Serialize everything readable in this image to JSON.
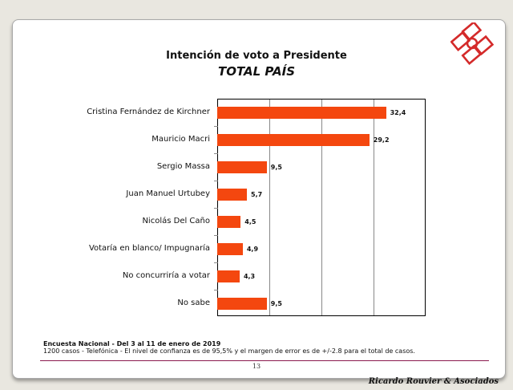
{
  "header": {
    "title": "Intención de voto a Presidente",
    "subtitle": "TOTAL PAÍS",
    "logo_icon": "rouvier-logo-icon",
    "logo_color": "#d42a2a"
  },
  "chart_data": {
    "type": "bar",
    "orientation": "horizontal",
    "title": "Intención de voto a Presidente — TOTAL PAÍS",
    "categories": [
      "Cristina Fernández de Kirchner",
      "Mauricio Macri",
      "Sergio Massa",
      "Juan Manuel Urtubey",
      "Nicolás Del Caño",
      "Votaría en blanco/ Impugnaría",
      "No concurriría a votar",
      "No sabe"
    ],
    "values": [
      32.4,
      29.2,
      9.5,
      5.7,
      4.5,
      4.9,
      4.3,
      9.5
    ],
    "value_labels": [
      "32,4",
      "29,2",
      "9,5",
      "5,7",
      "4,5",
      "4,9",
      "4,3",
      "9,5"
    ],
    "xlabel": "",
    "ylabel": "",
    "xlim": [
      0,
      40
    ],
    "grid": true,
    "gridlines_x": [
      10,
      20,
      30
    ],
    "bar_color": "#f4470f",
    "legend": null
  },
  "footer": {
    "survey_line": "Encuesta Nacional - Del 3 al 11 de enero de 2019",
    "method_line": "1200 casos - Telefónica  - El nivel de confianza es de 95,5% y el margen de error es de +/-2.8 para el total de casos.",
    "page_number": "13",
    "brand": "Ricardo Rouvier & Asociados",
    "rule_color": "#8b1a4f"
  }
}
